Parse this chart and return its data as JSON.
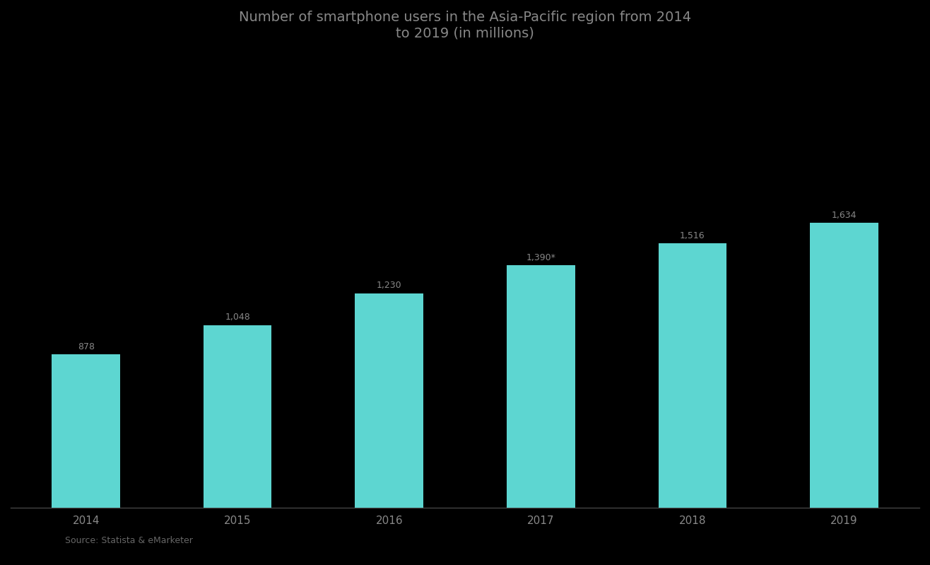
{
  "title": "Number of smartphone users in the Asia-Pacific region from 2014\nto 2019 (in millions)",
  "categories": [
    "2014",
    "2015",
    "2016",
    "2017",
    "2018",
    "2019"
  ],
  "values": [
    878,
    1048,
    1230,
    1390,
    1516,
    1634
  ],
  "bar_color": "#5DD6D1",
  "background_color": "#000000",
  "title_color": "#888888",
  "label_color": "#888888",
  "tick_color": "#888888",
  "value_labels": [
    "878",
    "1,048",
    "1,230",
    "1,390*",
    "1,516",
    "1,634"
  ],
  "source_text": "Source: Statista & eMarketer",
  "ylim": [
    0,
    2600
  ],
  "title_fontsize": 14,
  "label_fontsize": 9,
  "tick_fontsize": 11,
  "bar_width": 0.45
}
